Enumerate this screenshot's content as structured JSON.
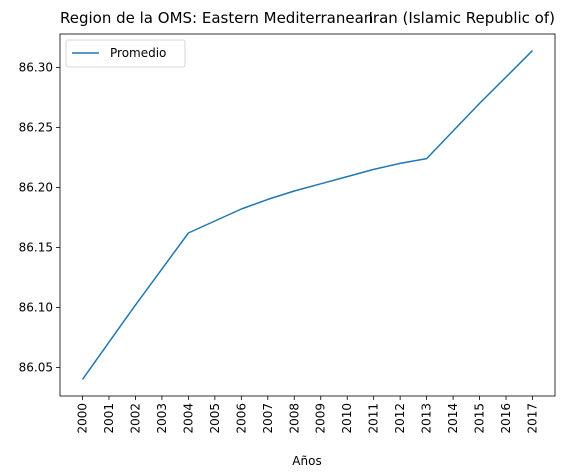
{
  "chart_data": {
    "type": "line",
    "title_left": "Region de la OMS: Eastern Mediterranean",
    "title_right": "Iran (Islamic Republic of)",
    "xlabel": "Años",
    "ylabel": "",
    "x": [
      "2000",
      "2001",
      "2002",
      "2003",
      "2004",
      "2005",
      "2006",
      "2007",
      "2008",
      "2009",
      "2010",
      "2011",
      "2012",
      "2013",
      "2014",
      "2015",
      "2016",
      "2017"
    ],
    "series": [
      {
        "name": "Promedio",
        "color": "#1f77b4",
        "values": [
          86.04,
          86.071,
          86.102,
          86.132,
          86.162,
          86.172,
          86.182,
          86.19,
          86.197,
          86.203,
          86.209,
          86.215,
          86.22,
          86.224,
          86.247,
          86.27,
          86.292,
          86.314
        ]
      }
    ],
    "yticks": [
      "86.05",
      "86.10",
      "86.15",
      "86.20",
      "86.25",
      "86.30"
    ],
    "ylim": [
      86.0262,
      86.3278
    ],
    "legend": "top-left",
    "grid": false
  }
}
